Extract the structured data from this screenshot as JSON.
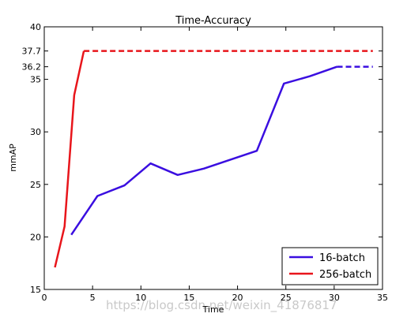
{
  "chart_data": {
    "type": "line",
    "title": "Time-Accuracy",
    "xlabel": "Time",
    "ylabel": "mmAP",
    "xlim": [
      0,
      35
    ],
    "ylim": [
      15,
      40
    ],
    "xticks": [
      "0",
      "5",
      "10",
      "15",
      "20",
      "25",
      "30",
      "35"
    ],
    "yticks": [
      "15",
      "20",
      "25",
      "30",
      "35",
      "36.2",
      "37.7",
      "40"
    ],
    "legend_position": "bottom-right",
    "grid": false,
    "series": [
      {
        "name": "16-batch",
        "color": "#3a0ee0",
        "x": [
          2.8,
          5.5,
          8.3,
          11.0,
          13.8,
          16.5,
          22.0,
          24.8,
          27.5,
          30.3
        ],
        "y": [
          20.2,
          23.9,
          24.9,
          27.0,
          25.9,
          26.5,
          28.2,
          34.6,
          35.3,
          36.2
        ],
        "dashed_extension": {
          "x": [
            30.3,
            34
          ],
          "y": [
            36.2,
            36.2
          ]
        }
      },
      {
        "name": "256-batch",
        "color": "#e8151b",
        "x": [
          1.1,
          2.1,
          3.1,
          4.1
        ],
        "y": [
          17.1,
          21.0,
          33.5,
          37.7
        ],
        "dashed_extension": {
          "x": [
            4.1,
            34
          ],
          "y": [
            37.7,
            37.7
          ]
        }
      }
    ],
    "watermark": "https://blog.csdn.net/weixin_41876817"
  }
}
